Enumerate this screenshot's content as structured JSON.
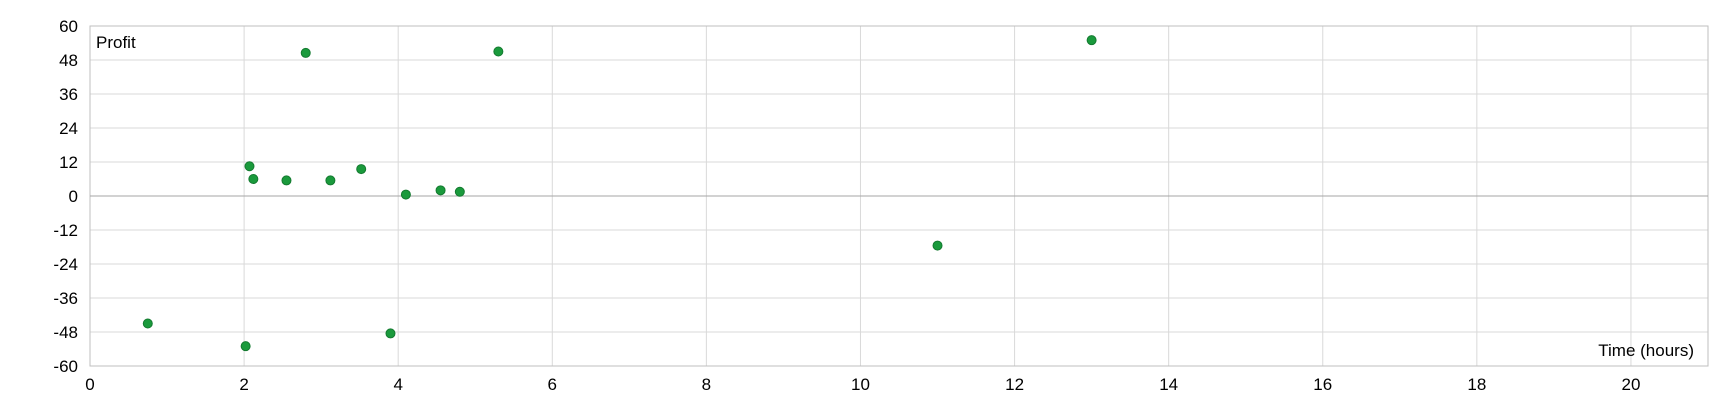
{
  "chart_data": {
    "type": "scatter",
    "title": "",
    "xlabel": "Time (hours)",
    "ylabel": "Profit",
    "xlim": [
      0,
      21
    ],
    "ylim": [
      -60,
      60
    ],
    "x_ticks": [
      0,
      2,
      4,
      6,
      8,
      10,
      12,
      14,
      16,
      18,
      20
    ],
    "x_tick_labels": [
      "0",
      "2",
      "4",
      "6",
      "8",
      "10",
      "12",
      "14",
      "16",
      "18",
      "20"
    ],
    "y_ticks": [
      60,
      48,
      36,
      24,
      12,
      0,
      -12,
      -24,
      -36,
      -48,
      -60
    ],
    "y_tick_labels": [
      "60",
      "48",
      "36",
      "24",
      "12",
      "0",
      "-12",
      "-24",
      "-36",
      "-48",
      "-60"
    ],
    "grid": true,
    "legend": "none",
    "marker_color": "#1a9a3c",
    "points": [
      {
        "x": 0.75,
        "y": -45
      },
      {
        "x": 2.02,
        "y": -53
      },
      {
        "x": 2.07,
        "y": 10.5
      },
      {
        "x": 2.12,
        "y": 6
      },
      {
        "x": 2.55,
        "y": 5.5
      },
      {
        "x": 2.8,
        "y": 50.5
      },
      {
        "x": 3.12,
        "y": 5.5
      },
      {
        "x": 3.52,
        "y": 9.5
      },
      {
        "x": 3.9,
        "y": -48.5
      },
      {
        "x": 4.1,
        "y": 0.5
      },
      {
        "x": 4.55,
        "y": 2
      },
      {
        "x": 4.8,
        "y": 1.5
      },
      {
        "x": 5.3,
        "y": 51
      },
      {
        "x": 11.0,
        "y": -17.5
      },
      {
        "x": 13.0,
        "y": 55
      }
    ]
  }
}
